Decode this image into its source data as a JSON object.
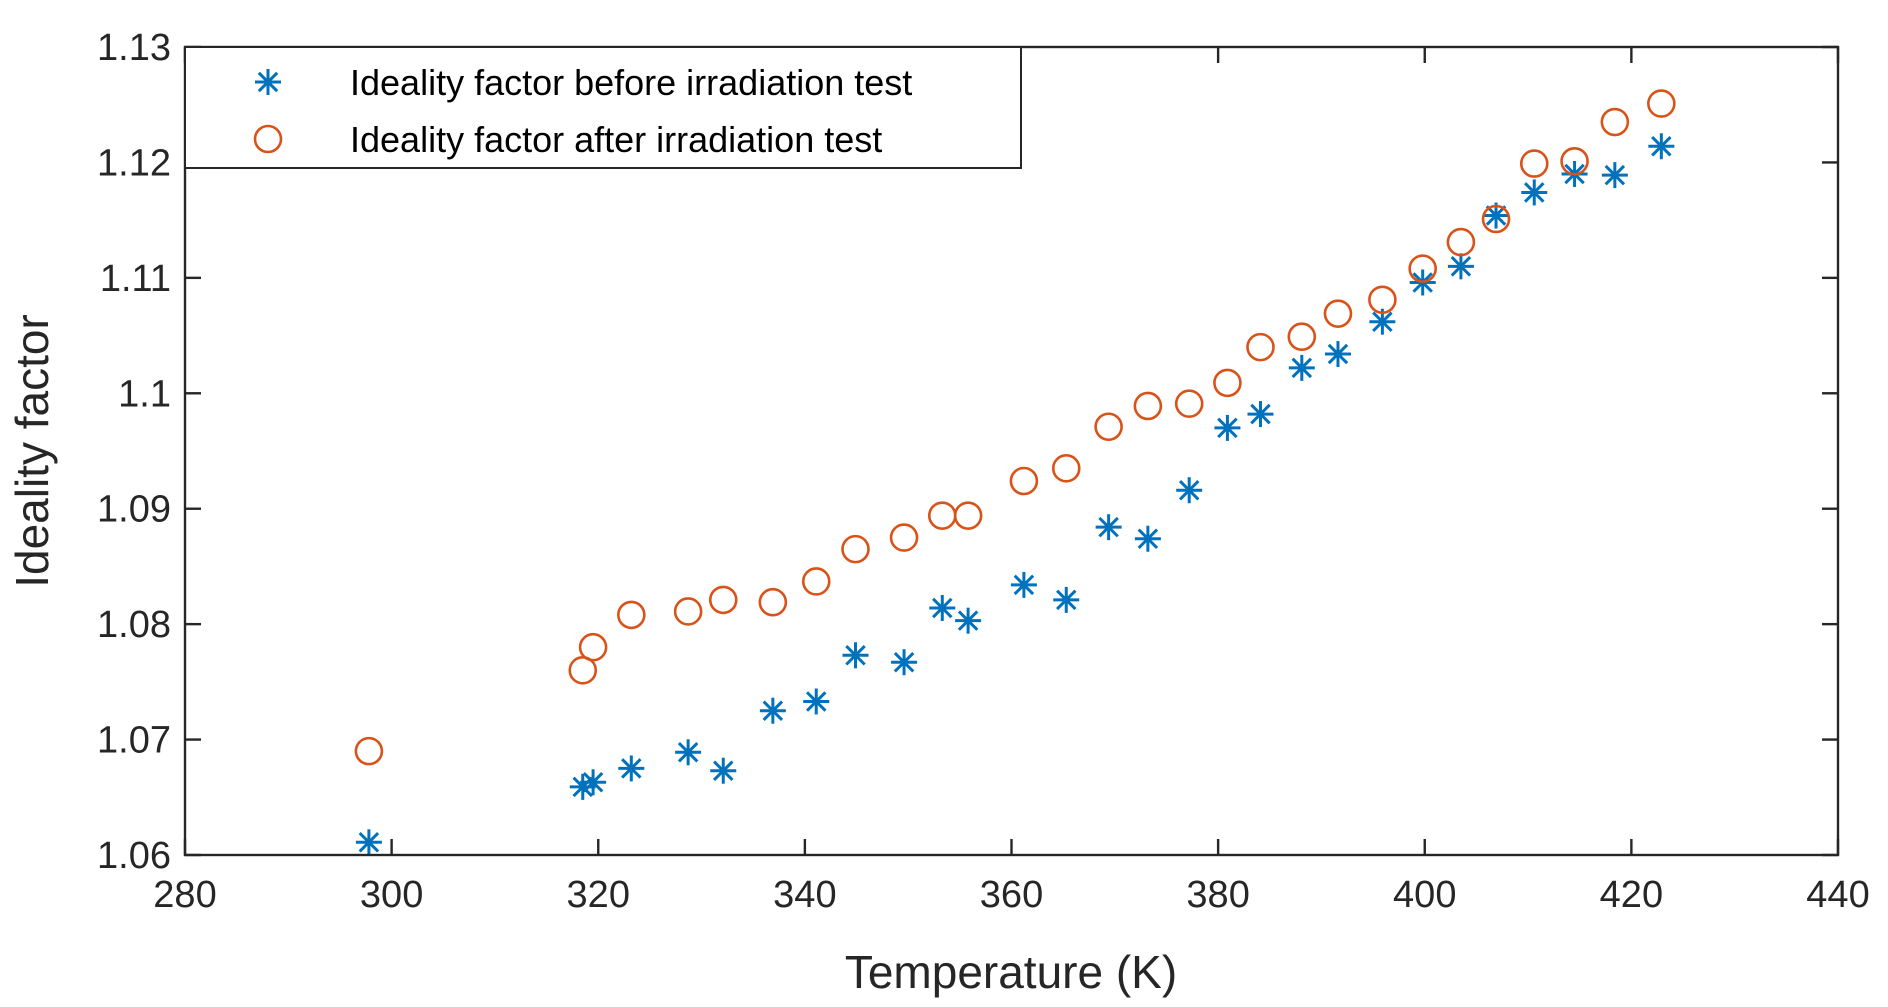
{
  "chart_data": {
    "type": "scatter",
    "title": "",
    "xlabel": "Temperature (K)",
    "ylabel": "Ideality factor",
    "xlim": [
      280,
      440
    ],
    "ylim": [
      1.06,
      1.13
    ],
    "xticks": [
      "280",
      "300",
      "320",
      "340",
      "360",
      "380",
      "400",
      "420",
      "440"
    ],
    "yticks": [
      "1.06",
      "1.07",
      "1.08",
      "1.09",
      "1.1",
      "1.11",
      "1.12",
      "1.13"
    ],
    "grid": false,
    "legend_position": "top-left",
    "series": [
      {
        "name": "Ideality factor before irradiation test",
        "marker": "asterisk",
        "color": "#0072BD",
        "x": [
          297.8,
          318.5,
          319.5,
          323.2,
          328.7,
          332.1,
          336.9,
          341.1,
          344.9,
          349.6,
          353.3,
          355.8,
          361.2,
          365.3,
          369.4,
          373.2,
          377.2,
          380.9,
          384.1,
          388.1,
          391.6,
          395.9,
          399.8,
          403.5,
          406.9,
          410.6,
          414.5,
          418.4,
          422.9
        ],
        "y": [
          1.0611,
          1.0659,
          1.0663,
          1.0675,
          1.0689,
          1.0673,
          1.0725,
          1.0733,
          1.0773,
          1.0767,
          1.0814,
          1.0803,
          1.0834,
          1.0821,
          1.0884,
          1.0874,
          1.0916,
          1.097,
          1.0982,
          1.1022,
          1.1034,
          1.1062,
          1.1096,
          1.111,
          1.1154,
          1.1174,
          1.119,
          1.1189,
          1.1214
        ]
      },
      {
        "name": "Ideality factor after irradiation test",
        "marker": "circle",
        "color": "#D95319",
        "x": [
          297.8,
          318.5,
          319.5,
          323.2,
          328.7,
          332.1,
          336.9,
          341.1,
          344.9,
          349.6,
          353.3,
          355.8,
          361.2,
          365.3,
          369.4,
          373.2,
          377.2,
          380.9,
          384.1,
          388.1,
          391.6,
          395.9,
          399.8,
          403.5,
          406.9,
          410.6,
          414.5,
          418.4,
          422.9
        ],
        "y": [
          1.069,
          1.076,
          1.078,
          1.0808,
          1.0811,
          1.0821,
          1.0819,
          1.0837,
          1.0865,
          1.0875,
          1.0894,
          1.0894,
          1.0924,
          1.0935,
          1.0971,
          1.0989,
          1.0991,
          1.1009,
          1.104,
          1.1049,
          1.1069,
          1.1081,
          1.1108,
          1.1131,
          1.1151,
          1.1199,
          1.1201,
          1.1235,
          1.1251
        ]
      }
    ]
  }
}
